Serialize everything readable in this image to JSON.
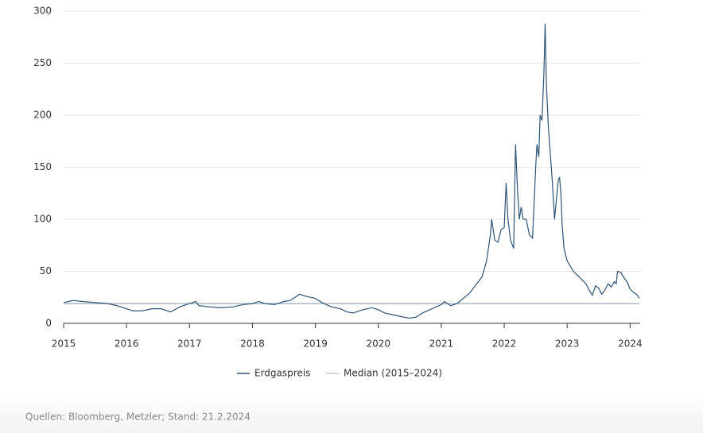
{
  "chart_data": {
    "type": "line",
    "source": "Quellen: Bloomberg, Metzler; Stand: 21.2.2024",
    "x": [
      2015.0,
      2015.08,
      2015.15,
      2015.3,
      2015.5,
      2015.7,
      2015.85,
      2016.0,
      2016.1,
      2016.25,
      2016.4,
      2016.55,
      2016.7,
      2016.85,
      2017.0,
      2017.1,
      2017.15,
      2017.3,
      2017.5,
      2017.7,
      2017.85,
      2018.0,
      2018.1,
      2018.2,
      2018.35,
      2018.5,
      2018.6,
      2018.7,
      2018.75,
      2018.85,
      2019.0,
      2019.1,
      2019.25,
      2019.4,
      2019.5,
      2019.6,
      2019.75,
      2019.9,
      2020.0,
      2020.1,
      2020.25,
      2020.4,
      2020.5,
      2020.6,
      2020.7,
      2020.85,
      2021.0,
      2021.05,
      2021.15,
      2021.25,
      2021.35,
      2021.45,
      2021.55,
      2021.65,
      2021.72,
      2021.78,
      2021.8,
      2021.85,
      2021.9,
      2021.95,
      2022.0,
      2022.03,
      2022.06,
      2022.1,
      2022.13,
      2022.15,
      2022.18,
      2022.21,
      2022.24,
      2022.27,
      2022.3,
      2022.35,
      2022.4,
      2022.45,
      2022.5,
      2022.52,
      2022.55,
      2022.57,
      2022.6,
      2022.63,
      2022.65,
      2022.67,
      2022.7,
      2022.73,
      2022.76,
      2022.8,
      2022.83,
      2022.86,
      2022.88,
      2022.9,
      2022.92,
      2022.95,
      2023.0,
      2023.1,
      2023.2,
      2023.3,
      2023.35,
      2023.4,
      2023.45,
      2023.5,
      2023.55,
      2023.6,
      2023.65,
      2023.7,
      2023.75,
      2023.78,
      2023.8,
      2023.85,
      2023.9,
      2023.95,
      2024.0,
      2024.05,
      2024.1,
      2024.15
    ],
    "series": [
      {
        "name": "Erdgaspreis",
        "color": "#2f5377",
        "values": [
          20,
          21,
          22,
          21,
          20,
          19,
          17,
          14,
          12,
          12,
          14,
          14,
          11,
          16,
          19,
          21,
          17,
          16,
          15,
          16,
          18,
          19,
          21,
          19,
          18,
          21,
          22,
          26,
          28,
          26,
          24,
          20,
          16,
          14,
          11,
          10,
          13,
          15,
          13,
          10,
          8,
          6,
          5,
          6,
          10,
          14,
          18,
          21,
          17,
          19,
          24,
          29,
          37,
          45,
          60,
          85,
          100,
          80,
          78,
          90,
          92,
          135,
          100,
          80,
          75,
          72,
          172,
          130,
          100,
          112,
          100,
          100,
          85,
          82,
          150,
          172,
          160,
          200,
          195,
          240,
          288,
          230,
          190,
          165,
          140,
          100,
          120,
          138,
          140,
          125,
          95,
          72,
          60,
          50,
          44,
          38,
          32,
          27,
          36,
          34,
          28,
          32,
          38,
          35,
          40,
          38,
          50,
          49,
          44,
          40,
          33,
          30,
          28,
          24
        ]
      },
      {
        "name": "Median (2015–2024)",
        "color": "#7f97ad",
        "legend_color": "#c8c8c8",
        "x": [
          2015.0,
          2024.15
        ],
        "values": [
          19,
          19
        ]
      }
    ],
    "xlim": [
      2015,
      2024.16
    ],
    "xticks": [
      2015,
      2016,
      2017,
      2018,
      2019,
      2020,
      2021,
      2022,
      2023,
      2024
    ],
    "ylim": [
      0,
      300
    ],
    "yticks": [
      0,
      50,
      100,
      150,
      200,
      250,
      300
    ],
    "grid": true
  }
}
